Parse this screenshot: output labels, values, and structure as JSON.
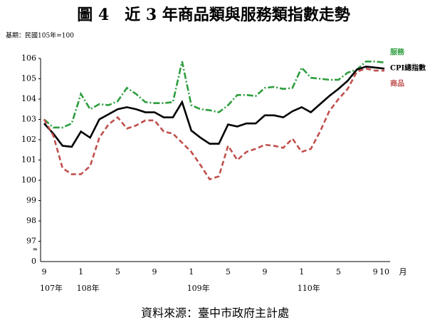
{
  "chart_data": {
    "type": "line",
    "title": "圖 4　近 3 年商品類與服務類指數走勢",
    "subtitle": "基期：民國105年=100",
    "source": "資料來源：臺中市政府主計處",
    "x_unit": "月",
    "categories": [
      "9",
      null,
      null,
      null,
      "1",
      null,
      null,
      null,
      "5",
      null,
      null,
      null,
      "9",
      null,
      null,
      null,
      "1",
      null,
      null,
      null,
      "5",
      null,
      null,
      null,
      "9",
      null,
      null,
      null,
      "1",
      null,
      null,
      null,
      "5",
      null,
      null,
      null,
      "9",
      "10"
    ],
    "year_labels": [
      "107年",
      "108年",
      "109年",
      "110年"
    ],
    "ylim": [
      96,
      106
    ],
    "yticks": [
      97,
      98,
      99,
      100,
      101,
      102,
      103,
      104,
      105,
      106
    ],
    "ybreak_labels": [
      "0",
      "≈"
    ],
    "grid": false,
    "series": [
      {
        "name": "服務",
        "color": "#2e9e3e",
        "style": "dashdot",
        "values": [
          103.0,
          102.6,
          102.6,
          102.8,
          104.25,
          103.5,
          103.75,
          103.7,
          103.9,
          104.55,
          104.25,
          103.85,
          103.8,
          103.8,
          103.85,
          105.85,
          103.7,
          103.5,
          103.45,
          103.35,
          103.7,
          104.2,
          104.2,
          104.15,
          104.55,
          104.6,
          104.5,
          104.55,
          105.55,
          105.05,
          105.0,
          104.95,
          104.95,
          105.3,
          105.45,
          105.85,
          105.85,
          105.8
        ]
      },
      {
        "name": "CPI總指數",
        "color": "#000000",
        "style": "solid",
        "values": [
          102.8,
          102.3,
          101.7,
          101.65,
          102.4,
          102.1,
          103.0,
          103.25,
          103.5,
          103.6,
          103.5,
          103.35,
          103.35,
          103.1,
          103.1,
          103.85,
          102.45,
          102.1,
          101.8,
          101.8,
          102.75,
          102.65,
          102.8,
          102.8,
          103.2,
          103.2,
          103.1,
          103.4,
          103.6,
          103.35,
          103.75,
          104.15,
          104.5,
          104.9,
          105.45,
          105.6,
          105.55,
          105.5
        ]
      },
      {
        "name": "商品",
        "color": "#c0504d",
        "style": "dashed",
        "values": [
          103.0,
          102.2,
          100.6,
          100.3,
          100.3,
          100.7,
          102.1,
          102.75,
          103.1,
          102.55,
          102.7,
          102.95,
          102.95,
          102.4,
          102.3,
          101.85,
          101.4,
          100.75,
          100.05,
          100.2,
          101.7,
          101.0,
          101.4,
          101.55,
          101.75,
          101.7,
          101.6,
          102.05,
          101.4,
          101.55,
          102.4,
          103.4,
          104.0,
          104.5,
          105.35,
          105.5,
          105.4,
          105.4
        ]
      }
    ]
  }
}
